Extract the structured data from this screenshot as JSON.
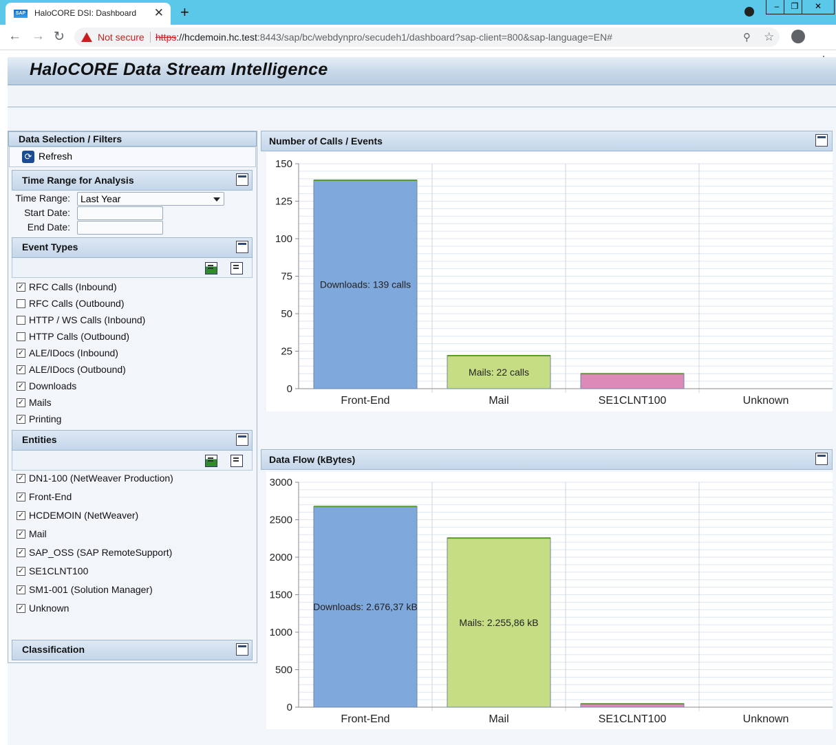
{
  "browser": {
    "tab_title": "HaloCORE DSI: Dashboard",
    "favicon_text": "SAP",
    "new_tab": "+",
    "not_secure": "Not secure",
    "url_scheme": "https",
    "url_host": "://hcdemoin.hc.test",
    "url_rest": ":8443/sap/bc/webdynpro/secudeh1/dashboard?sap-client=800&sap-language=EN#",
    "icons": [
      "back-icon",
      "forward-icon",
      "reload-icon",
      "warning-icon",
      "zoom-icon",
      "star-icon",
      "profile-icon",
      "menu-icon"
    ]
  },
  "app": {
    "title": "HaloCORE Data Stream Intelligence"
  },
  "filters": {
    "title": "Data Selection / Filters",
    "refresh_label": "Refresh",
    "time_range": {
      "title": "Time Range for Analysis",
      "time_range_label": "Time Range:",
      "time_range_value": "Last Year",
      "start_date_label": "Start Date:",
      "start_date_value": "",
      "end_date_label": "End Date:",
      "end_date_value": ""
    },
    "event_types": {
      "title": "Event Types",
      "items": [
        {
          "label": "RFC Calls (Inbound)",
          "checked": true
        },
        {
          "label": "RFC Calls (Outbound)",
          "checked": false
        },
        {
          "label": "HTTP / WS Calls (Inbound)",
          "checked": false
        },
        {
          "label": "HTTP Calls (Outbound)",
          "checked": false
        },
        {
          "label": "ALE/IDocs (Inbound)",
          "checked": true
        },
        {
          "label": "ALE/IDocs (Outbound)",
          "checked": true
        },
        {
          "label": "Downloads",
          "checked": true
        },
        {
          "label": "Mails",
          "checked": true
        },
        {
          "label": "Printing",
          "checked": true
        }
      ]
    },
    "entities": {
      "title": "Entities",
      "items": [
        {
          "label": "DN1-100 (NetWeaver Production)",
          "checked": true
        },
        {
          "label": "Front-End",
          "checked": true
        },
        {
          "label": "HCDEMOIN (NetWeaver)",
          "checked": true
        },
        {
          "label": "Mail",
          "checked": true
        },
        {
          "label": "SAP_OSS (SAP RemoteSupport)",
          "checked": true
        },
        {
          "label": "SE1CLNT100",
          "checked": true
        },
        {
          "label": "SM1-001 (Solution Manager)",
          "checked": true
        },
        {
          "label": "Unknown",
          "checked": true
        }
      ]
    },
    "classification": {
      "title": "Classification"
    }
  },
  "colors": {
    "front_end_bar": "#7fa8dc",
    "mail_bar": "#c6dd84",
    "se1clnt100_bar": "#de8ab9",
    "grid": "#dde6f0"
  },
  "chart_data": [
    {
      "type": "bar",
      "title": "Number of Calls / Events",
      "categories": [
        "Front-End",
        "Mail",
        "SE1CLNT100",
        "Unknown"
      ],
      "values": [
        139,
        22,
        10,
        0
      ],
      "data_labels": [
        "Downloads: 139 calls",
        "Mails: 22 calls",
        "",
        ""
      ],
      "ylim": [
        0,
        150
      ],
      "yticks": [
        0,
        25,
        50,
        75,
        100,
        125,
        150
      ],
      "xlabel": "",
      "ylabel": ""
    },
    {
      "type": "bar",
      "title": "Data Flow (kBytes)",
      "categories": [
        "Front-End",
        "Mail",
        "SE1CLNT100",
        "Unknown"
      ],
      "values": [
        2676.37,
        2255.86,
        45,
        0
      ],
      "data_labels": [
        "Downloads: 2.676,37 kB",
        "Mails: 2.255,86 kB",
        "",
        ""
      ],
      "ylim": [
        0,
        3000
      ],
      "yticks": [
        0,
        500,
        1000,
        1500,
        2000,
        2500,
        3000
      ],
      "xlabel": "",
      "ylabel": ""
    }
  ]
}
